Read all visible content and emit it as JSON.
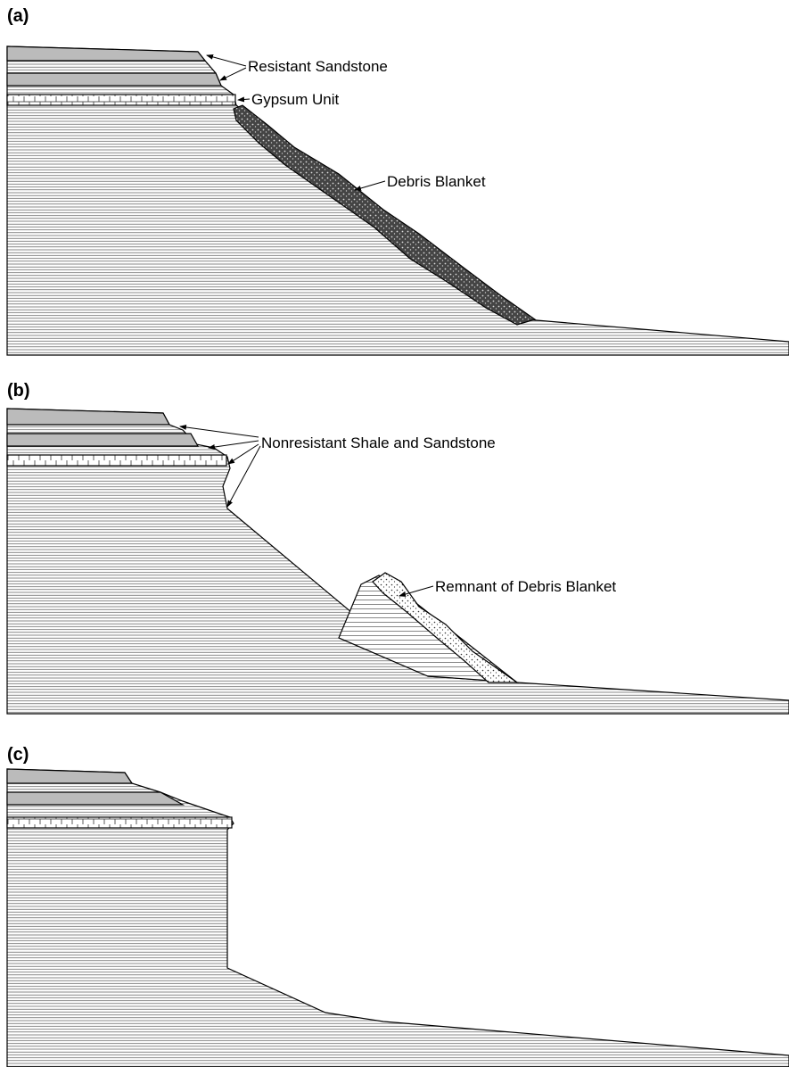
{
  "panels": [
    {
      "label": "(a)",
      "annotations": [
        "Resistant Sandstone",
        "Gypsum Unit",
        "Debris Blanket"
      ]
    },
    {
      "label": "(b)",
      "annotations": [
        "Nonresistant Shale and Sandstone",
        "Remnant of Debris Blanket"
      ]
    },
    {
      "label": "(c)"
    }
  ]
}
